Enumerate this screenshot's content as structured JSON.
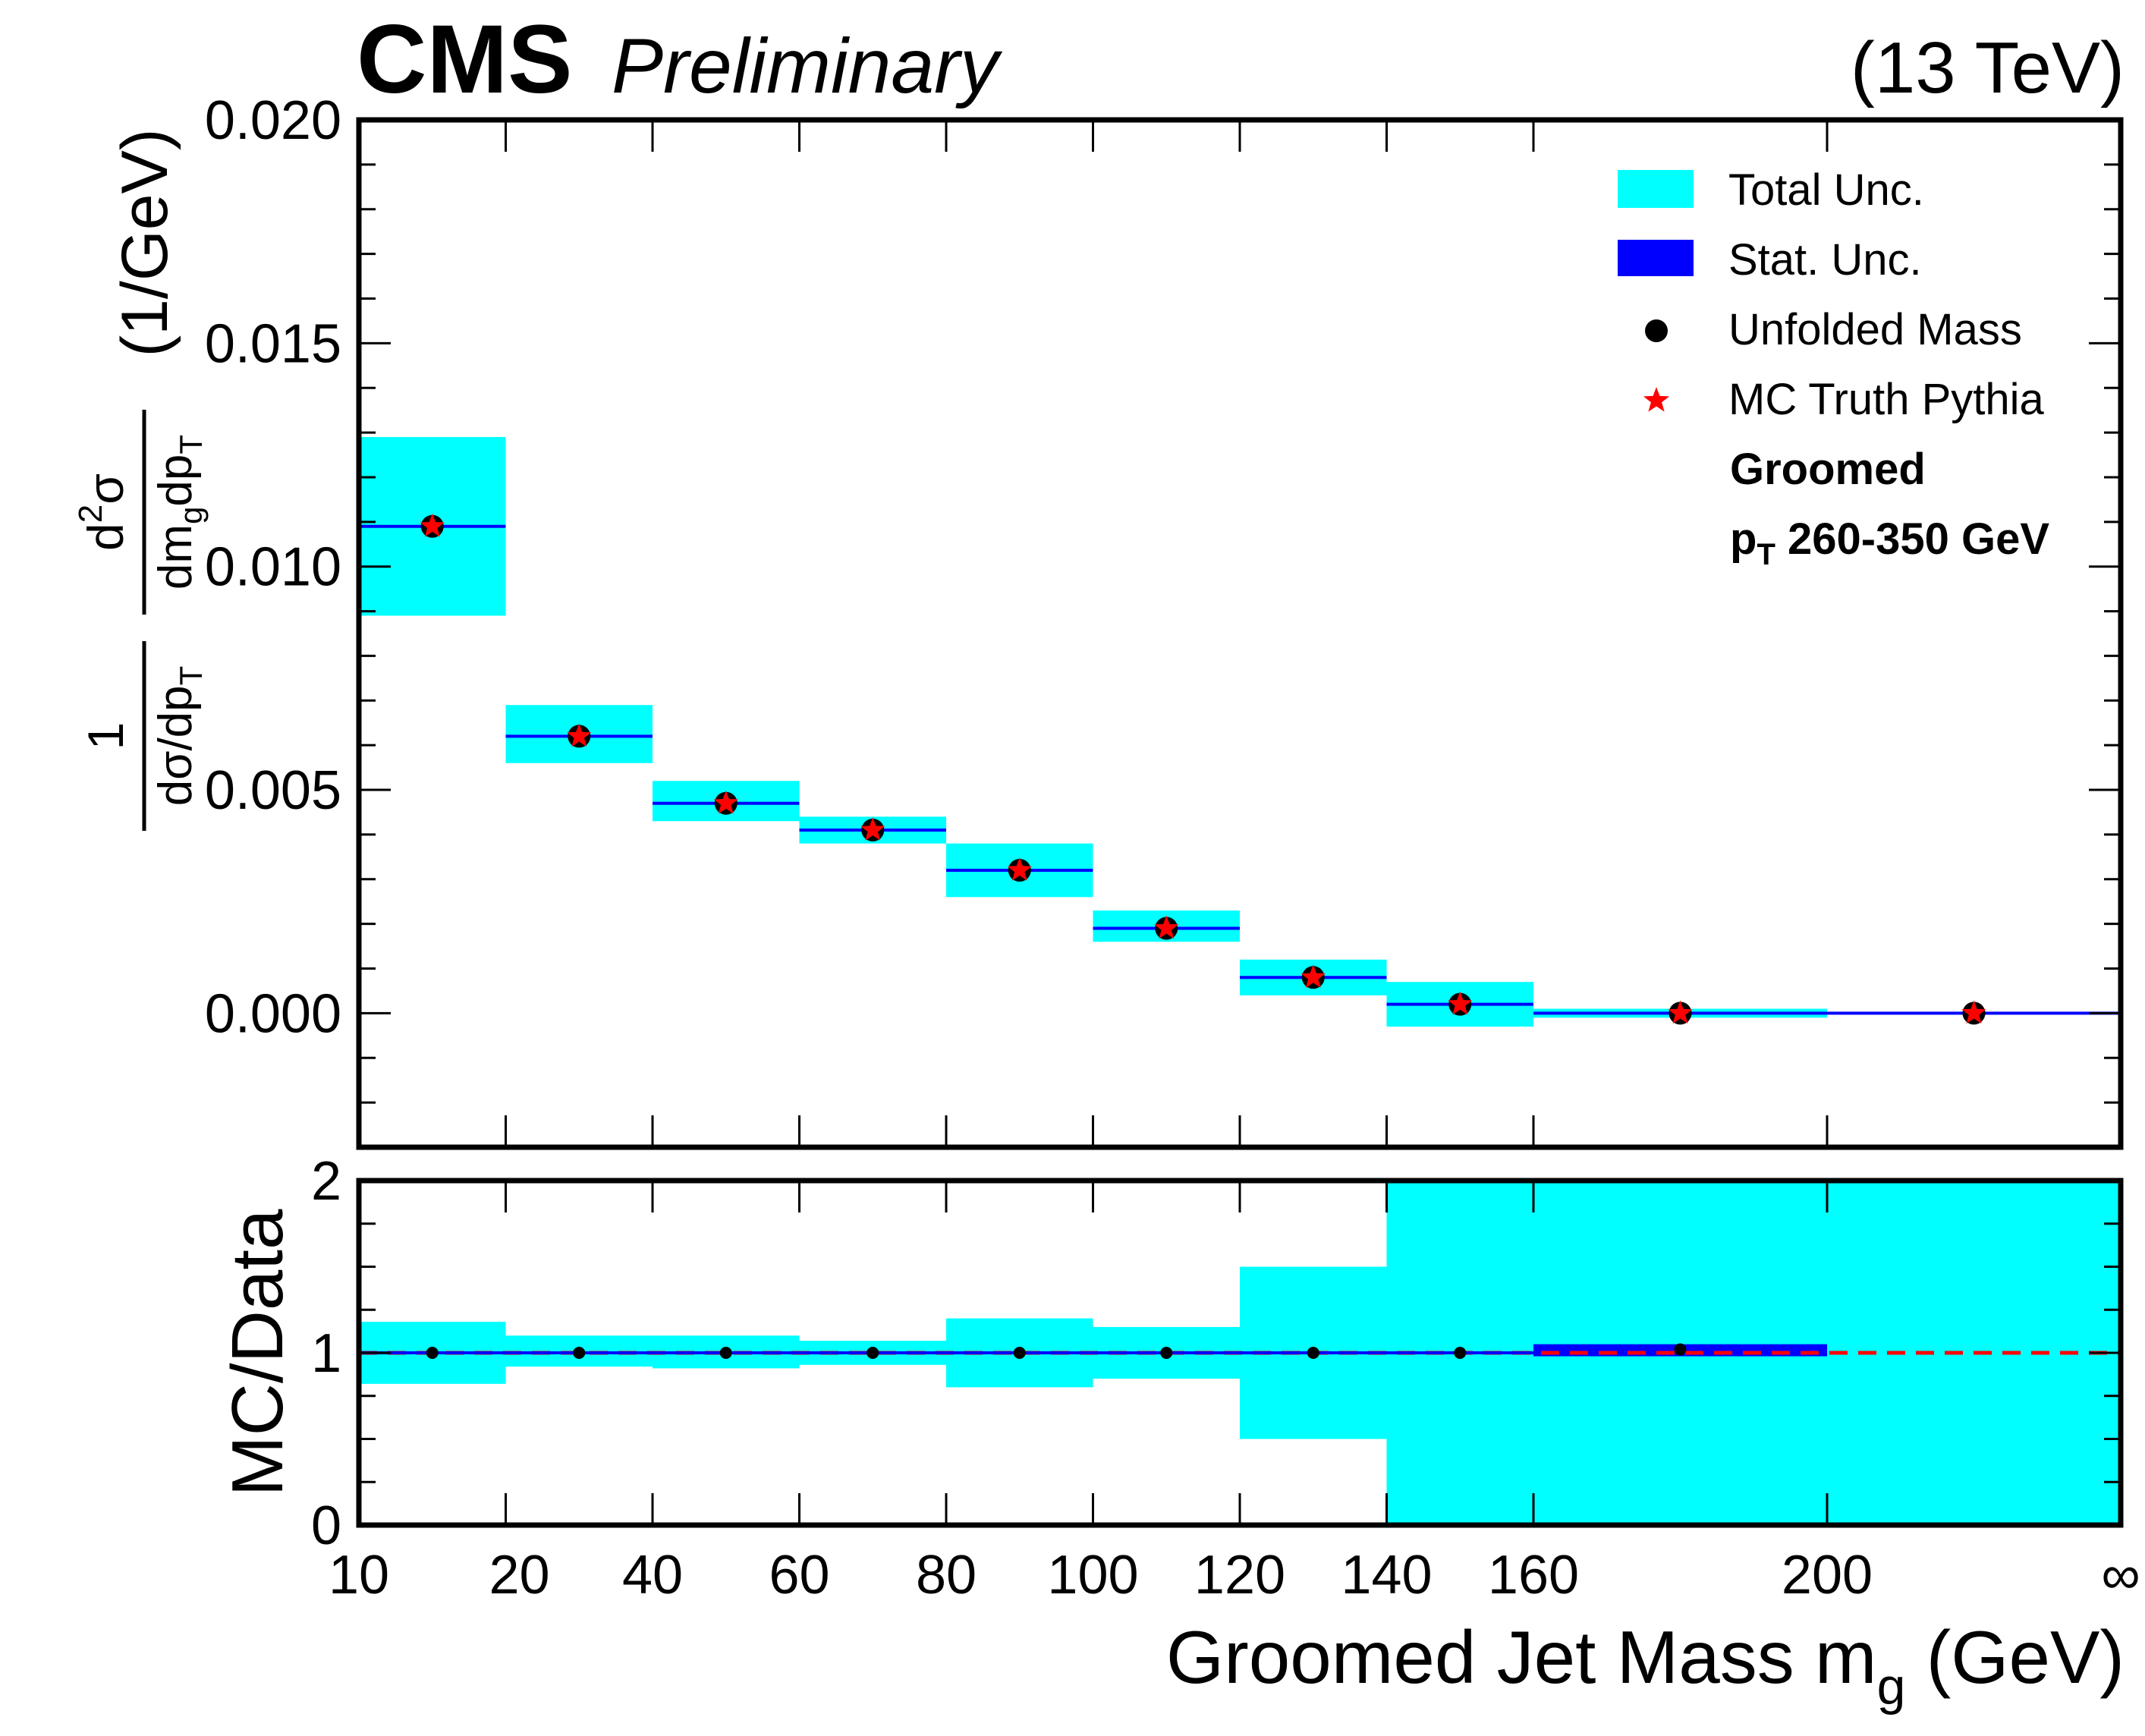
{
  "header": {
    "experiment": "CMS",
    "status": "Preliminary",
    "energy": "(13 TeV)"
  },
  "legend": {
    "placement": "top-right",
    "entries": [
      {
        "label": "Total Unc.",
        "symbol": "box",
        "color": "#00ffff"
      },
      {
        "label": "Stat. Unc.",
        "symbol": "box",
        "color": "#0000ff"
      },
      {
        "label": "Unfolded Mass",
        "symbol": "dot",
        "color": "#000000"
      },
      {
        "label": "MC Truth Pythia",
        "symbol": "star",
        "color": "#ff0000"
      }
    ],
    "notes": {
      "line1": "Groomed",
      "pt_symbol": "p",
      "pt_subscript": "T",
      "pt_range": " 260-350 GeV"
    }
  },
  "colors": {
    "total_unc": "#00ffff",
    "stat_unc": "#0000ff",
    "data": "#000000",
    "mc": "#ff0000",
    "ratio_reference": "#ff0000"
  },
  "chart_data": [
    {
      "type": "scatter",
      "panel": "top",
      "ylabel": {
        "frac1_num": "1",
        "frac1_den": "dσ/dp",
        "frac1_den_sub": "T",
        "frac2_num_d": "d",
        "frac2_num_sup": "2",
        "frac2_num_rest": "σ",
        "frac2_den_a": "dm",
        "frac2_den_sub_a": "g",
        "frac2_den_b": "dp",
        "frac2_den_sub_b": "T",
        "unit": "(1/GeV)"
      },
      "ylim": [
        -0.003,
        0.02
      ],
      "yticks": [
        {
          "value": 0.0,
          "label": "0.000"
        },
        {
          "value": 0.005,
          "label": "0.005"
        },
        {
          "value": 0.01,
          "label": "0.010"
        },
        {
          "value": 0.015,
          "label": "0.015"
        },
        {
          "value": 0.02,
          "label": "0.020"
        }
      ],
      "bins": [
        {
          "lo": 0,
          "hi": 1,
          "center": 0.5,
          "data": 0.0109,
          "mc": 0.0109,
          "tot_lo": 0.0089,
          "tot_hi": 0.0129
        },
        {
          "lo": 1,
          "hi": 2,
          "center": 1.5,
          "data": 0.0062,
          "mc": 0.0062,
          "tot_lo": 0.0056,
          "tot_hi": 0.0069
        },
        {
          "lo": 2,
          "hi": 3,
          "center": 2.5,
          "data": 0.0047,
          "mc": 0.0047,
          "tot_lo": 0.0043,
          "tot_hi": 0.0052
        },
        {
          "lo": 3,
          "hi": 4,
          "center": 3.5,
          "data": 0.0041,
          "mc": 0.0041,
          "tot_lo": 0.0038,
          "tot_hi": 0.0044
        },
        {
          "lo": 4,
          "hi": 5,
          "center": 4.5,
          "data": 0.0032,
          "mc": 0.0032,
          "tot_lo": 0.0026,
          "tot_hi": 0.0038
        },
        {
          "lo": 5,
          "hi": 6,
          "center": 5.5,
          "data": 0.0019,
          "mc": 0.0019,
          "tot_lo": 0.0016,
          "tot_hi": 0.0023
        },
        {
          "lo": 6,
          "hi": 7,
          "center": 6.5,
          "data": 0.0008,
          "mc": 0.0008,
          "tot_lo": 0.0004,
          "tot_hi": 0.0012
        },
        {
          "lo": 7,
          "hi": 8,
          "center": 7.5,
          "data": 0.0002,
          "mc": 0.0002,
          "tot_lo": -0.0003,
          "tot_hi": 0.0007
        },
        {
          "lo": 8,
          "hi": 10,
          "center": 9.0,
          "data": 0.0,
          "mc": 0.0,
          "tot_lo": -0.0001,
          "tot_hi": 0.0001
        },
        {
          "lo": 10,
          "hi": 12,
          "center": 11.0,
          "data": 0.0,
          "mc": 0.0,
          "tot_lo": 0.0,
          "tot_hi": 0.0
        }
      ]
    },
    {
      "type": "scatter",
      "panel": "ratio",
      "xlabel": {
        "main": "Groomed Jet Mass m",
        "sub": "g",
        "unit": " (GeV)"
      },
      "ylabel": "MC/Data",
      "ylim": [
        0,
        2
      ],
      "reference_line": 1,
      "xticks": [
        {
          "pos": 0,
          "label": "10"
        },
        {
          "pos": 1,
          "label": "20"
        },
        {
          "pos": 2,
          "label": "40"
        },
        {
          "pos": 3,
          "label": "60"
        },
        {
          "pos": 4,
          "label": "80"
        },
        {
          "pos": 5,
          "label": "100"
        },
        {
          "pos": 6,
          "label": "120"
        },
        {
          "pos": 7,
          "label": "140"
        },
        {
          "pos": 8,
          "label": "160"
        },
        {
          "pos": 10,
          "label": "200"
        },
        {
          "pos": 12,
          "label": "∞"
        }
      ],
      "yticks": [
        {
          "value": 0,
          "label": "0"
        },
        {
          "value": 1,
          "label": "1"
        },
        {
          "value": 2,
          "label": "2"
        }
      ],
      "bins": [
        {
          "lo": 0,
          "hi": 1,
          "center": 0.5,
          "ratio": 1.0,
          "tot_lo": 0.82,
          "tot_hi": 1.18
        },
        {
          "lo": 1,
          "hi": 2,
          "center": 1.5,
          "ratio": 1.0,
          "tot_lo": 0.92,
          "tot_hi": 1.1
        },
        {
          "lo": 2,
          "hi": 3,
          "center": 2.5,
          "ratio": 1.0,
          "tot_lo": 0.91,
          "tot_hi": 1.1
        },
        {
          "lo": 3,
          "hi": 4,
          "center": 3.5,
          "ratio": 1.0,
          "tot_lo": 0.93,
          "tot_hi": 1.07
        },
        {
          "lo": 4,
          "hi": 5,
          "center": 4.5,
          "ratio": 1.0,
          "tot_lo": 0.8,
          "tot_hi": 1.2
        },
        {
          "lo": 5,
          "hi": 6,
          "center": 5.5,
          "ratio": 1.0,
          "tot_lo": 0.85,
          "tot_hi": 1.15
        },
        {
          "lo": 6,
          "hi": 7,
          "center": 6.5,
          "ratio": 1.0,
          "tot_lo": 0.5,
          "tot_hi": 1.5
        },
        {
          "lo": 7,
          "hi": 8,
          "center": 7.5,
          "ratio": 1.0,
          "tot_lo": 0.0,
          "tot_hi": 2.0
        },
        {
          "lo": 8,
          "hi": 10,
          "center": 9.0,
          "ratio": 1.02,
          "tot_lo": 0.0,
          "tot_hi": 2.0,
          "stat_lo": 0.98,
          "stat_hi": 1.05
        },
        {
          "lo": 10,
          "hi": 12,
          "center": 11.0,
          "tot_lo": 0.0,
          "tot_hi": 2.0
        }
      ]
    }
  ]
}
